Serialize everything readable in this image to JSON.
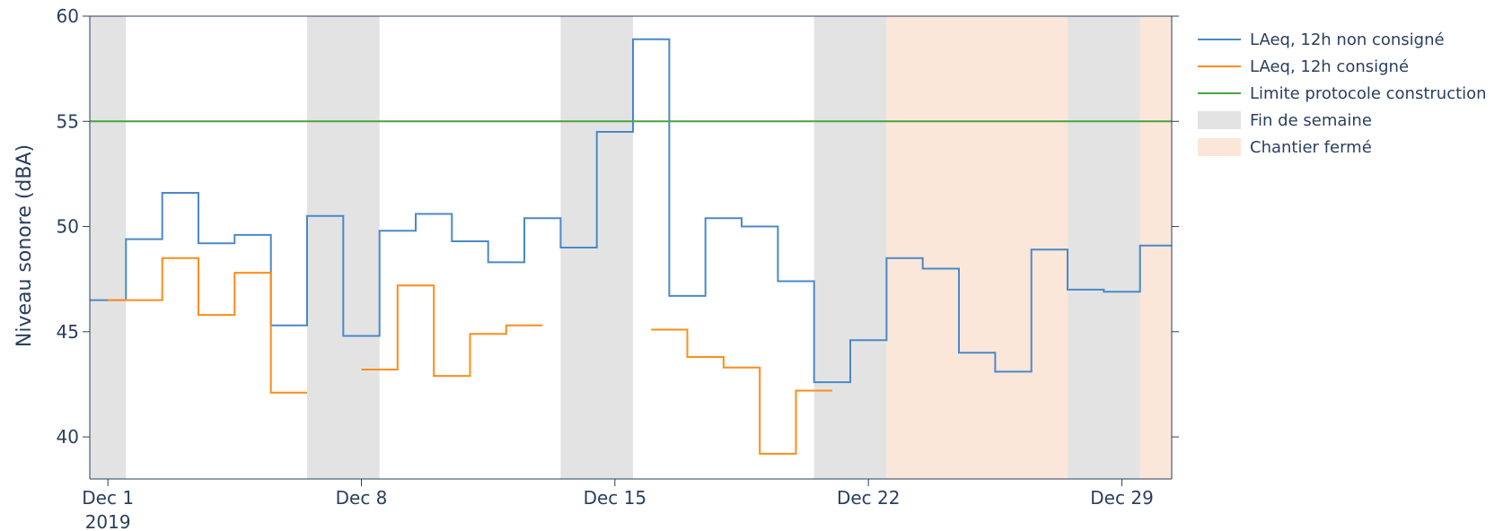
{
  "chart_data": {
    "type": "line",
    "title": "",
    "xlabel": "",
    "ylabel": "Niveau sonore (dBA)",
    "xlim": [
      "2019-11-30T12:00",
      "2019-12-30T09:00"
    ],
    "ylim": [
      38,
      60
    ],
    "x_ticks": [
      {
        "value": "2019-12-01",
        "label": "Dec 1",
        "sublabel": "2019"
      },
      {
        "value": "2019-12-08",
        "label": "Dec 8",
        "sublabel": ""
      },
      {
        "value": "2019-12-15",
        "label": "Dec 15",
        "sublabel": ""
      },
      {
        "value": "2019-12-22",
        "label": "Dec 22",
        "sublabel": ""
      },
      {
        "value": "2019-12-29",
        "label": "Dec 29",
        "sublabel": ""
      }
    ],
    "y_ticks": [
      40,
      45,
      50,
      55,
      60
    ],
    "grid": false,
    "legend_position": "right",
    "colors": {
      "non_consigne": "#4a89c8",
      "consigne": "#ff8c1a",
      "limite": "#49a43f",
      "weekend": "#e3e3e3",
      "chantier": "#fbe6da",
      "axis": "#2a3f5f"
    },
    "series": [
      {
        "name": "LAeq, 12h non consigné",
        "key": "non_consigne",
        "shape": "step-post",
        "x": [
          "2019-11-30T12:00",
          "2019-12-01T12:00",
          "2019-12-02T12:00",
          "2019-12-03T12:00",
          "2019-12-04T12:00",
          "2019-12-05T12:00",
          "2019-12-06T12:00",
          "2019-12-07T12:00",
          "2019-12-08T12:00",
          "2019-12-09T12:00",
          "2019-12-10T12:00",
          "2019-12-11T12:00",
          "2019-12-12T12:00",
          "2019-12-13T12:00",
          "2019-12-14T12:00",
          "2019-12-15T12:00",
          "2019-12-16T12:00",
          "2019-12-17T12:00",
          "2019-12-18T12:00",
          "2019-12-19T12:00",
          "2019-12-20T12:00",
          "2019-12-21T12:00",
          "2019-12-22T12:00",
          "2019-12-23T12:00",
          "2019-12-24T12:00",
          "2019-12-25T12:00",
          "2019-12-26T12:00",
          "2019-12-27T12:00",
          "2019-12-28T12:00",
          "2019-12-29T12:00"
        ],
        "y": [
          46.5,
          49.4,
          51.6,
          49.2,
          49.6,
          45.3,
          50.5,
          44.8,
          49.8,
          50.6,
          49.3,
          48.3,
          50.4,
          49.0,
          54.5,
          58.9,
          46.7,
          50.4,
          50.0,
          47.4,
          42.6,
          44.6,
          48.5,
          48.0,
          44.0,
          43.1,
          48.9,
          47.0,
          46.9,
          49.1
        ],
        "end": "2019-12-30T09:00"
      },
      {
        "name": "LAeq, 12h consigné",
        "key": "consigne",
        "shape": "step-post",
        "segments": [
          {
            "x": [
              "2019-12-01T00:00",
              "2019-12-01T12:00",
              "2019-12-02T12:00",
              "2019-12-03T12:00",
              "2019-12-04T12:00",
              "2019-12-05T12:00"
            ],
            "y": [
              46.5,
              46.5,
              48.5,
              45.8,
              47.8,
              42.1
            ],
            "end": "2019-12-06T12:00"
          },
          {
            "x": [
              "2019-12-08T00:00",
              "2019-12-09T00:00",
              "2019-12-10T00:00",
              "2019-12-11T00:00",
              "2019-12-12T00:00"
            ],
            "y": [
              43.2,
              47.2,
              42.9,
              44.9,
              45.3
            ],
            "end": "2019-12-13T00:00"
          },
          {
            "x": [
              "2019-12-16T00:00",
              "2019-12-17T00:00",
              "2019-12-18T00:00",
              "2019-12-19T00:00",
              "2019-12-20T00:00"
            ],
            "y": [
              45.1,
              43.8,
              43.3,
              39.2,
              42.2
            ],
            "end": "2019-12-21T00:00"
          }
        ]
      },
      {
        "name": "Limite protocole construction",
        "key": "limite",
        "x": [
          "2019-11-30T12:00",
          "2019-12-30T09:00"
        ],
        "y": [
          55,
          55
        ]
      }
    ],
    "shaded_regions": [
      {
        "name": "Fin de semaine",
        "key": "weekend",
        "ranges": [
          [
            "2019-11-30T12:00",
            "2019-12-01T12:00"
          ],
          [
            "2019-12-06T12:00",
            "2019-12-08T12:00"
          ],
          [
            "2019-12-13T12:00",
            "2019-12-15T12:00"
          ],
          [
            "2019-12-20T12:00",
            "2019-12-22T12:00"
          ],
          [
            "2019-12-27T12:00",
            "2019-12-29T12:00"
          ]
        ]
      },
      {
        "name": "Chantier fermé",
        "key": "chantier",
        "ranges": [
          [
            "2019-12-22T12:00",
            "2019-12-27T12:00"
          ],
          [
            "2019-12-29T12:00",
            "2019-12-30T09:00"
          ]
        ]
      }
    ],
    "legend": [
      {
        "label": "LAeq, 12h non consigné",
        "key": "non_consigne",
        "kind": "line"
      },
      {
        "label": "LAeq, 12h consigné",
        "key": "consigne",
        "kind": "line"
      },
      {
        "label": "Limite protocole construction",
        "key": "limite",
        "kind": "line"
      },
      {
        "label": "Fin de semaine",
        "key": "weekend",
        "kind": "box"
      },
      {
        "label": "Chantier fermé",
        "key": "chantier",
        "kind": "box"
      }
    ]
  }
}
